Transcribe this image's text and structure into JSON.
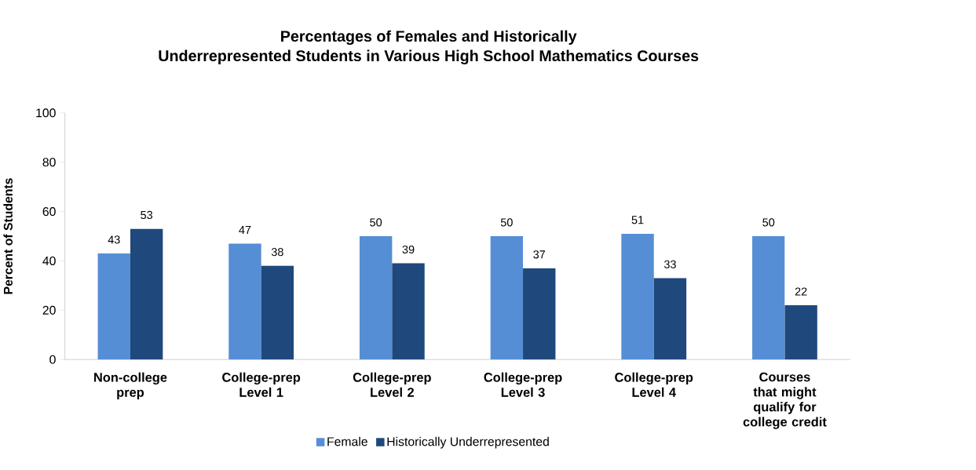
{
  "chart_data": {
    "type": "bar",
    "title": "Percentages of Females and Historically",
    "subtitle": "Underrepresented Students in Various High School Mathematics Courses",
    "ylabel": "Percent of Students",
    "categories": [
      "Non-college prep",
      "College-prep Level 1",
      "College-prep Level 2",
      "College-prep Level 3",
      "College-prep Level 4",
      "Courses that might qualify for college credit"
    ],
    "series": [
      {
        "name": "Female",
        "color": "#558ed5",
        "values": [
          43,
          47,
          50,
          50,
          51,
          50
        ]
      },
      {
        "name": "Historically Underrepresented",
        "color": "#1f497d",
        "values": [
          53,
          38,
          39,
          37,
          33,
          22
        ]
      }
    ],
    "ylim": [
      0,
      100
    ],
    "yticks": [
      0,
      20,
      40,
      60,
      80,
      100
    ],
    "data_labels": true,
    "grid": false,
    "legend": "bottom"
  }
}
